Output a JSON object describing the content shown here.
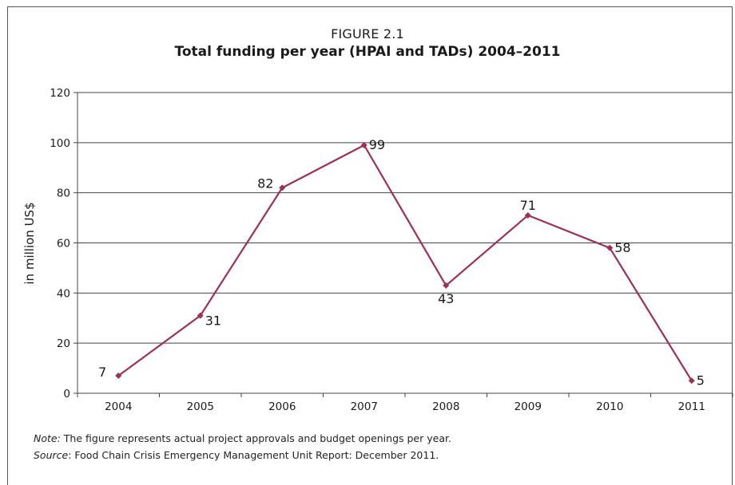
{
  "chart_data": {
    "type": "line",
    "figure_label": "FIGURE 2.1",
    "title": "Total funding per year (HPAI and TADs) 2004–2011",
    "xlabel": "",
    "ylabel": "in million US$",
    "categories": [
      "2004",
      "2005",
      "2006",
      "2007",
      "2008",
      "2009",
      "2010",
      "2011"
    ],
    "series": [
      {
        "values": [
          7,
          31,
          82,
          99,
          43,
          71,
          58,
          5
        ]
      }
    ],
    "data_labels": [
      "7",
      "31",
      "82",
      "99",
      "43",
      "71",
      "58",
      "5"
    ],
    "yticks": [
      "0",
      "20",
      "40",
      "60",
      "80",
      "100",
      "120"
    ],
    "ylim": [
      0,
      120
    ],
    "grid": true,
    "legend": "none",
    "line_color": "#9e2f55",
    "marker": "diamond"
  },
  "footer": {
    "note_label": "Note:",
    "note_text": " The figure represents actual project approvals and budget openings per year.",
    "source_label": "Source",
    "source_text": ": Food Chain Crisis Emergency Management Unit Report: December 2011."
  }
}
